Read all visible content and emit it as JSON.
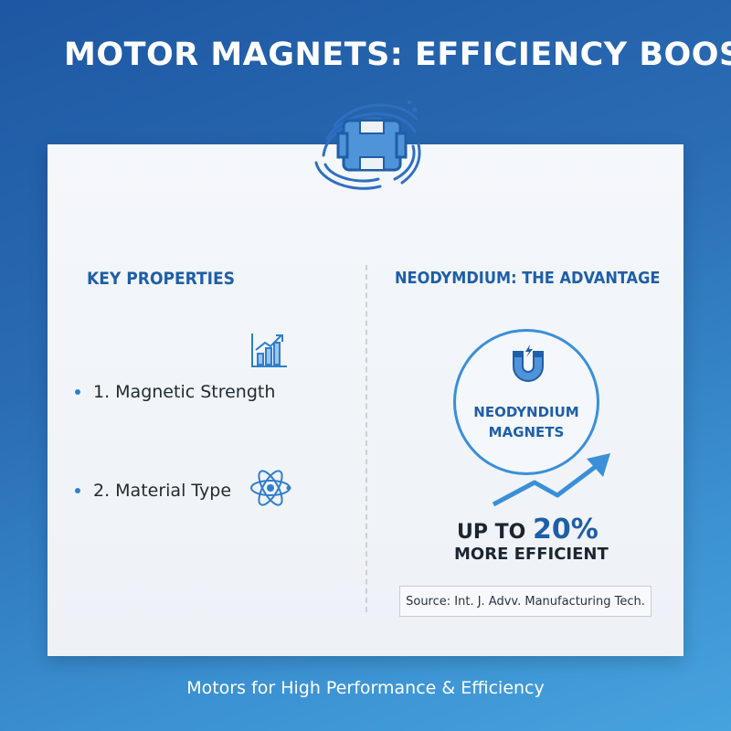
{
  "title": "MOTOR MAGNETS: EFFICIENCY BOOST",
  "left_panel": {
    "heading": "KEY PROPERTIES",
    "items": [
      {
        "label": "1. Magnetic Strength",
        "icon": "bar-chart-trend-icon"
      },
      {
        "label": "2. Material Type",
        "icon": "atom-icon"
      }
    ]
  },
  "right_panel": {
    "heading": "NEODYMDIUM: THE ADVANTAGE",
    "circle_label_line1": "NEODYNDIUM",
    "circle_label_line2": "MAGNETS",
    "circle_icon": "horseshoe-magnet-icon",
    "stat_prefix": "UP TO ",
    "stat_value": "20%",
    "stat_suffix": "MORE EFFICIENT",
    "source": "Source: Int. J. Advv. Manufacturing Tech."
  },
  "logo_icon": "motor-magnet-icon",
  "footer": "Motors for High Performance & Efficiency",
  "colors": {
    "accent": "#1f5ea8",
    "accent_light": "#3a8fd8",
    "background_top": "#1e57a3",
    "background_bottom": "#46a3de"
  }
}
